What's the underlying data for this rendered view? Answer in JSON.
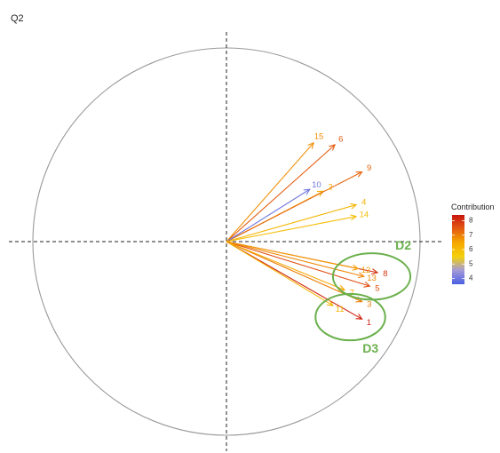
{
  "panel_label": "Q2",
  "chart_data": {
    "type": "scatter",
    "title": "",
    "xlabel": "",
    "ylabel": "",
    "xlim": [
      -1.05,
      1.05
    ],
    "ylim": [
      -1.05,
      1.05
    ],
    "axes_lines": "dashed at x=0 and y=0",
    "unit_circle": true,
    "variables": [
      {
        "label": "1",
        "x": 0.7,
        "y": -0.4,
        "contribution": 8.2
      },
      {
        "label": "2",
        "x": 0.5,
        "y": 0.26,
        "contribution": 6.4
      },
      {
        "label": "3",
        "x": 0.7,
        "y": -0.31,
        "contribution": 7.0
      },
      {
        "label": "4",
        "x": 0.67,
        "y": 0.19,
        "contribution": 6.2
      },
      {
        "label": "5",
        "x": 0.74,
        "y": -0.23,
        "contribution": 7.6
      },
      {
        "label": "6",
        "x": 0.56,
        "y": 0.5,
        "contribution": 7.4
      },
      {
        "label": "7",
        "x": 0.61,
        "y": -0.25,
        "contribution": 6.5
      },
      {
        "label": "8",
        "x": 0.78,
        "y": -0.16,
        "contribution": 8.0
      },
      {
        "label": "9",
        "x": 0.7,
        "y": 0.36,
        "contribution": 7.3
      },
      {
        "label": "10",
        "x": 0.43,
        "y": 0.27,
        "contribution": 4.0
      },
      {
        "label": "11",
        "x": 0.55,
        "y": -0.33,
        "contribution": 6.2
      },
      {
        "label": "12",
        "x": 0.68,
        "y": -0.14,
        "contribution": 6.6
      },
      {
        "label": "13",
        "x": 0.71,
        "y": -0.18,
        "contribution": 6.9
      },
      {
        "label": "14",
        "x": 0.67,
        "y": 0.13,
        "contribution": 6.0
      },
      {
        "label": "15",
        "x": 0.45,
        "y": 0.51,
        "contribution": 6.8
      }
    ],
    "clusters": [
      {
        "label": "D2",
        "cx": 0.75,
        "cy": -0.18,
        "rx": 0.2,
        "ry": 0.12,
        "color": "#6ab04c"
      },
      {
        "label": "D3",
        "cx": 0.64,
        "cy": -0.39,
        "rx": 0.18,
        "ry": 0.12,
        "color": "#6ab04c"
      }
    ],
    "legend": {
      "title": "Contribution",
      "placement": "right",
      "min": 3.6,
      "max": 8.4,
      "ticks": [
        4,
        5,
        6,
        7,
        8
      ],
      "gradient": [
        "#4a5fe0",
        "#a59ad9",
        "#f3d10a",
        "#f6a800",
        "#e45a11",
        "#c8160f"
      ]
    }
  }
}
